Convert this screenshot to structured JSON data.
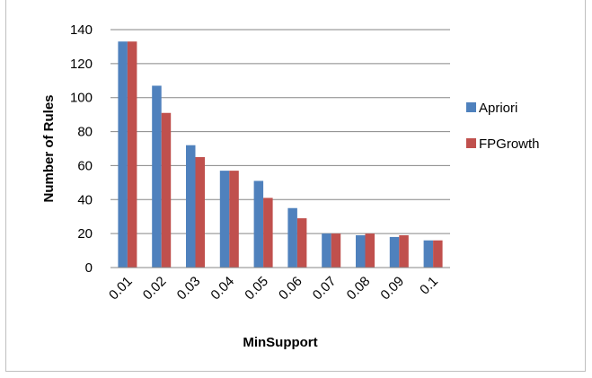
{
  "chart_data": {
    "type": "bar",
    "title": "",
    "xlabel": "MinSupport",
    "ylabel": "Number of Rules",
    "categories": [
      "0.01",
      "0.02",
      "0.03",
      "0.04",
      "0.05",
      "0.06",
      "0.07",
      "0.08",
      "0.09",
      "0.1"
    ],
    "series": [
      {
        "name": "Apriori",
        "color": "#4f81bd",
        "values": [
          133,
          107,
          72,
          57,
          51,
          35,
          20,
          19,
          18,
          16
        ]
      },
      {
        "name": "FPGrowth",
        "color": "#c0504d",
        "values": [
          133,
          91,
          65,
          57,
          41,
          29,
          20,
          20,
          19,
          16
        ]
      }
    ],
    "ylim": [
      0,
      140
    ],
    "yticks": [
      0,
      20,
      40,
      60,
      80,
      100,
      120,
      140
    ],
    "grid": true,
    "legend_position": "right"
  }
}
